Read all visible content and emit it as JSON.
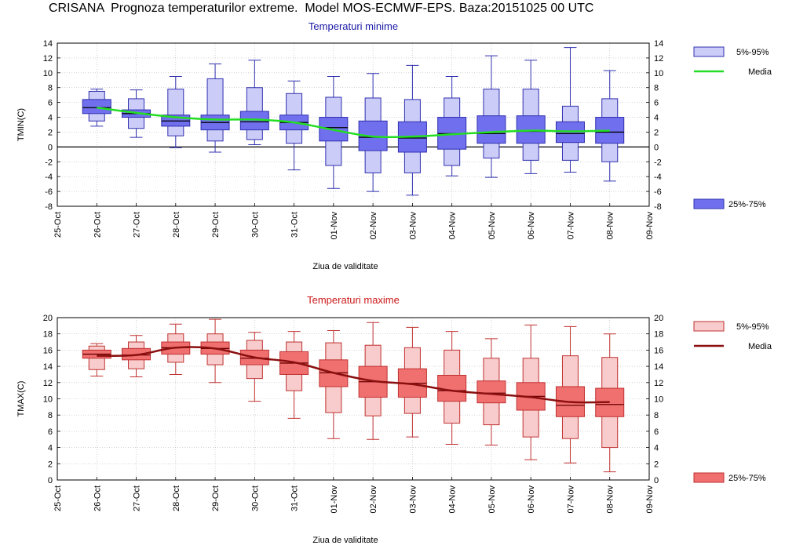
{
  "title": "CRISANA  Prognoza temperaturilor extreme.  Model MOS-ECMWF-EPS. Baza:20151025 00 UTC",
  "chart_data": [
    {
      "type": "box",
      "title": "Temperaturi minime",
      "title_color": "#1a1aa6",
      "ylabel": "TMIN(C)",
      "xlabel": "Ziua de validitate",
      "ylim": [
        -8,
        14
      ],
      "yticks": [
        -8,
        -6,
        -4,
        -2,
        0,
        2,
        4,
        6,
        8,
        10,
        12,
        14
      ],
      "zero_line": true,
      "x_ticks": [
        "25-Oct",
        "26-Oct",
        "27-Oct",
        "28-Oct",
        "29-Oct",
        "30-Oct",
        "31-Oct",
        "01-Nov",
        "02-Nov",
        "03-Nov",
        "04-Nov",
        "05-Nov",
        "06-Nov",
        "07-Nov",
        "08-Nov",
        "09-Nov"
      ],
      "categories": [
        "26-Oct",
        "27-Oct",
        "28-Oct",
        "29-Oct",
        "30-Oct",
        "31-Oct",
        "01-Nov",
        "02-Nov",
        "03-Nov",
        "04-Nov",
        "05-Nov",
        "06-Nov",
        "07-Nov",
        "08-Nov"
      ],
      "p5": [
        2.8,
        1.3,
        -0.1,
        -0.7,
        0.3,
        -3.1,
        -5.6,
        -6.0,
        -6.5,
        -3.9,
        -4.1,
        -3.6,
        -3.4,
        -4.6
      ],
      "p5_95_low": [
        3.5,
        2.5,
        1.5,
        0.8,
        1.0,
        0.5,
        -2.5,
        -3.5,
        -3.5,
        -2.5,
        -1.5,
        -1.8,
        -1.8,
        -2.0
      ],
      "p25": [
        4.5,
        4.0,
        2.8,
        2.3,
        2.3,
        2.3,
        0.8,
        -0.5,
        -0.7,
        -0.3,
        0.5,
        0.5,
        0.6,
        0.5
      ],
      "median": [
        5.3,
        4.5,
        3.5,
        3.3,
        3.4,
        3.3,
        2.6,
        1.3,
        1.2,
        1.8,
        1.8,
        2.1,
        1.8,
        2.0
      ],
      "p75": [
        6.4,
        5.0,
        4.3,
        4.3,
        4.8,
        4.3,
        4.0,
        3.5,
        3.4,
        4.0,
        4.2,
        4.2,
        3.4,
        4.0
      ],
      "p5_95_high": [
        7.5,
        6.5,
        7.8,
        9.2,
        8.0,
        7.2,
        6.7,
        6.6,
        6.4,
        6.6,
        7.8,
        7.8,
        5.5,
        6.5
      ],
      "p95": [
        7.8,
        7.7,
        9.5,
        11.2,
        11.7,
        8.9,
        9.5,
        9.9,
        11.0,
        9.5,
        12.3,
        11.7,
        13.4,
        10.3
      ],
      "mean_curve": [
        5.3,
        4.6,
        4.0,
        3.7,
        3.7,
        3.3,
        2.3,
        1.4,
        1.4,
        1.7,
        2.0,
        2.2,
        2.1,
        2.2
      ],
      "colors": {
        "box": "#7070ee",
        "band": "#ccccf8",
        "edge": "#3030b0",
        "mean": "#22dd22",
        "median": "#000000"
      },
      "legend": {
        "band_label": "5%-95%",
        "mean_label": "Media",
        "box_label": "25%-75%"
      }
    },
    {
      "type": "box",
      "title": "Temperaturi maxime",
      "title_color": "#cc1a1a",
      "ylabel": "TMAX(C)",
      "xlabel": "Ziua de validitate",
      "ylim": [
        0,
        20
      ],
      "yticks": [
        0,
        2,
        4,
        6,
        8,
        10,
        12,
        14,
        16,
        18,
        20
      ],
      "zero_line": false,
      "x_ticks": [
        "25-Oct",
        "26-Oct",
        "27-Oct",
        "28-Oct",
        "29-Oct",
        "30-Oct",
        "31-Oct",
        "01-Nov",
        "02-Nov",
        "03-Nov",
        "04-Nov",
        "05-Nov",
        "06-Nov",
        "07-Nov",
        "08-Nov",
        "09-Nov"
      ],
      "categories": [
        "26-Oct",
        "27-Oct",
        "28-Oct",
        "29-Oct",
        "30-Oct",
        "31-Oct",
        "01-Nov",
        "02-Nov",
        "03-Nov",
        "04-Nov",
        "05-Nov",
        "06-Nov",
        "07-Nov",
        "08-Nov"
      ],
      "p5": [
        12.8,
        12.7,
        13.0,
        12.0,
        9.7,
        7.6,
        5.1,
        5.0,
        5.3,
        4.4,
        4.3,
        2.5,
        2.1,
        1.0
      ],
      "p5_95_low": [
        13.6,
        13.7,
        14.5,
        14.2,
        12.5,
        11.0,
        8.3,
        7.9,
        8.2,
        7.0,
        6.8,
        5.3,
        5.1,
        4.0
      ],
      "p25": [
        15.0,
        14.8,
        15.5,
        15.5,
        14.2,
        13.0,
        11.5,
        10.2,
        10.2,
        9.7,
        9.5,
        8.6,
        7.8,
        7.8
      ],
      "median": [
        15.5,
        15.4,
        16.3,
        16.2,
        15.0,
        14.4,
        13.2,
        12.1,
        11.9,
        11.0,
        10.7,
        10.3,
        9.2,
        9.3
      ],
      "p75": [
        16.0,
        16.2,
        17.0,
        17.0,
        16.0,
        15.8,
        14.8,
        14.0,
        13.7,
        12.9,
        12.2,
        12.0,
        11.5,
        11.3
      ],
      "p5_95_high": [
        16.5,
        17.0,
        18.0,
        18.0,
        17.2,
        17.0,
        16.9,
        16.6,
        16.3,
        16.0,
        15.0,
        15.0,
        15.3,
        15.1
      ],
      "p95": [
        16.8,
        17.8,
        19.2,
        19.8,
        18.2,
        18.3,
        18.4,
        19.4,
        18.8,
        18.3,
        17.4,
        19.1,
        18.9,
        18.0
      ],
      "mean_curve": [
        15.3,
        15.4,
        16.3,
        16.2,
        15.1,
        14.5,
        13.2,
        12.2,
        11.8,
        11.0,
        10.6,
        10.2,
        9.6,
        9.6
      ],
      "colors": {
        "box": "#f07070",
        "band": "#f8cccc",
        "edge": "#c03030",
        "mean": "#8b0f0f",
        "median": "#6b0000"
      },
      "legend": {
        "band_label": "5%-95%",
        "mean_label": "Media",
        "box_label": "25%-75%"
      }
    }
  ]
}
